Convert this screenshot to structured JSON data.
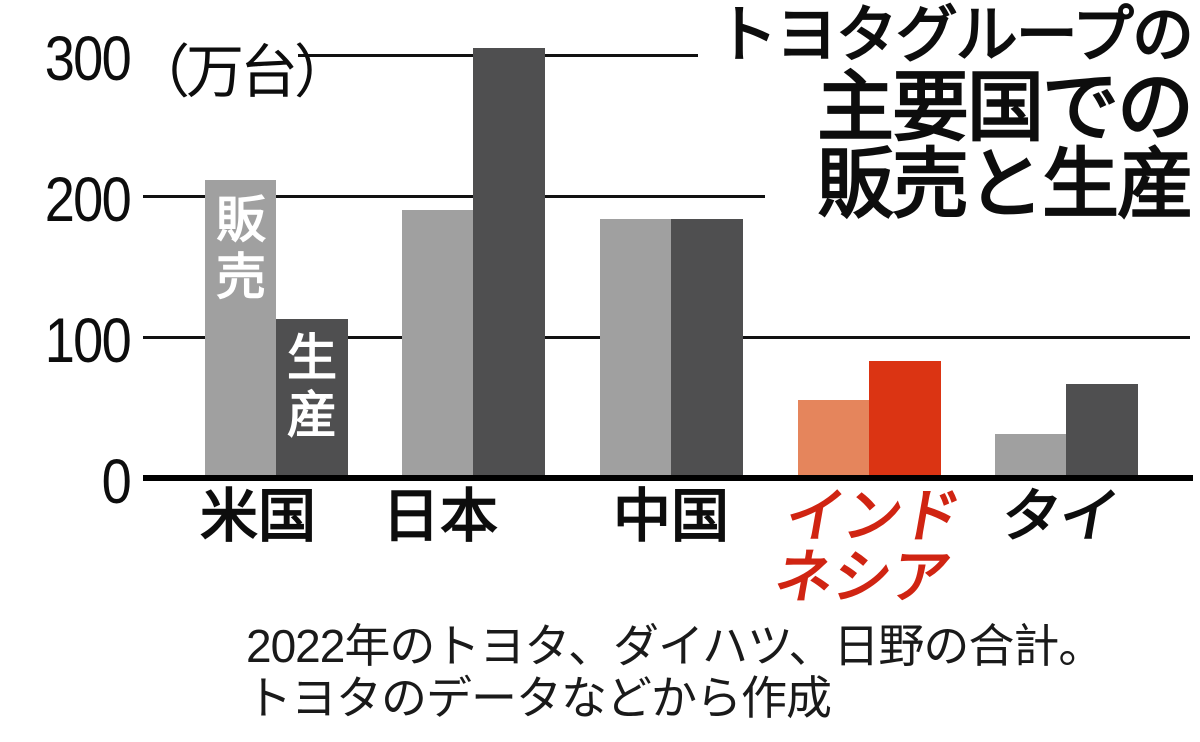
{
  "title": {
    "line1": "トヨタグループの",
    "line2": "主要国での",
    "line3": "販売と生産"
  },
  "bar_labels": {
    "sales": "販売",
    "production": "生産"
  },
  "axis": {
    "ticks": [
      {
        "value": 300,
        "label": "300",
        "unit": "（万台）"
      },
      {
        "value": 200,
        "label": "200",
        "unit": ""
      },
      {
        "value": 100,
        "label": "100",
        "unit": ""
      },
      {
        "value": 0,
        "label": "0",
        "unit": ""
      }
    ]
  },
  "chart_data": {
    "type": "bar",
    "title": "トヨタグループの主要国での販売と生産",
    "unit": "万台",
    "categories": [
      "米国",
      "日本",
      "中国",
      "インドネシア",
      "タイ"
    ],
    "series": [
      {
        "name": "販売",
        "values": [
          211,
          190,
          184,
          55,
          31
        ]
      },
      {
        "name": "生産",
        "values": [
          113,
          305,
          184,
          83,
          67
        ]
      }
    ],
    "ylim": [
      0,
      320
    ],
    "yticks": [
      0,
      100,
      200,
      300
    ],
    "grid": true,
    "legend_position": "inside-first-bars",
    "highlight_category": "インドネシア",
    "colors": {
      "sales": "#a0a0a0",
      "production": "#4f4f50",
      "sales_highlight": "#e5855c",
      "production_highlight": "#db3413",
      "highlight_label": "#d02412",
      "grid": "#111111",
      "text": "#0d0d0d"
    },
    "category_labels": [
      {
        "text": "米国",
        "color": "#0d0d0d",
        "oblique": false
      },
      {
        "text": "日本",
        "color": "#0d0d0d",
        "oblique": false
      },
      {
        "text": "中国",
        "color": "#0d0d0d",
        "oblique": false
      },
      {
        "text": "インド\nネシア",
        "color": "#d02412",
        "oblique": true
      },
      {
        "text": "タイ",
        "color": "#0d0d0d",
        "oblique": true
      }
    ]
  },
  "footnote": {
    "line1": "2022年のトヨタ、ダイハツ、日野の合計。",
    "line2": "トヨタのデータなどから作成"
  }
}
